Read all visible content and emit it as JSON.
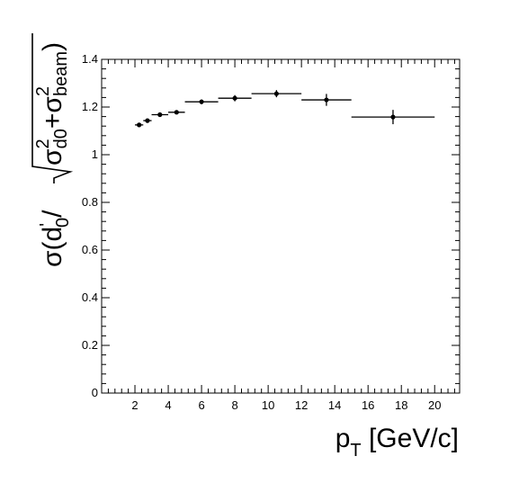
{
  "chart_data": {
    "type": "scatter",
    "title": "",
    "xlabel": "p_T [GeV/c]",
    "xlabel_main": "p",
    "xlabel_sub": "T",
    "xlabel_rest": " [GeV/c]",
    "ylabel": "σ(d'_0/√(σ²_d0+σ²_beam))",
    "xlim": [
      0,
      21.5
    ],
    "ylim": [
      0,
      1.4
    ],
    "x_ticks": [
      2,
      4,
      6,
      8,
      10,
      12,
      14,
      16,
      18,
      20
    ],
    "x_tick_labels": [
      "2",
      "4",
      "6",
      "8",
      "10",
      "12",
      "14",
      "16",
      "18",
      "20"
    ],
    "y_ticks": [
      0,
      0.2,
      0.4,
      0.6,
      0.8,
      1,
      1.2,
      1.4
    ],
    "y_tick_labels": [
      "0",
      "0.2",
      "0.4",
      "0.6",
      "0.8",
      "1",
      "1.2",
      "1.4"
    ],
    "grid": false,
    "series": [
      {
        "points": [
          {
            "x": 2.25,
            "xerr": 0.25,
            "y": 1.125,
            "yerr": 0.005
          },
          {
            "x": 2.75,
            "xerr": 0.25,
            "y": 1.143,
            "yerr": 0.008
          },
          {
            "x": 3.5,
            "xerr": 0.5,
            "y": 1.168,
            "yerr": 0.008
          },
          {
            "x": 4.5,
            "xerr": 0.5,
            "y": 1.178,
            "yerr": 0.008
          },
          {
            "x": 6.0,
            "xerr": 1.0,
            "y": 1.222,
            "yerr": 0.01
          },
          {
            "x": 8.0,
            "xerr": 1.0,
            "y": 1.237,
            "yerr": 0.013
          },
          {
            "x": 10.5,
            "xerr": 1.5,
            "y": 1.256,
            "yerr": 0.015
          },
          {
            "x": 13.5,
            "xerr": 1.5,
            "y": 1.23,
            "yerr": 0.025
          },
          {
            "x": 17.5,
            "xerr": 2.5,
            "y": 1.158,
            "yerr": 0.03
          }
        ]
      }
    ]
  }
}
